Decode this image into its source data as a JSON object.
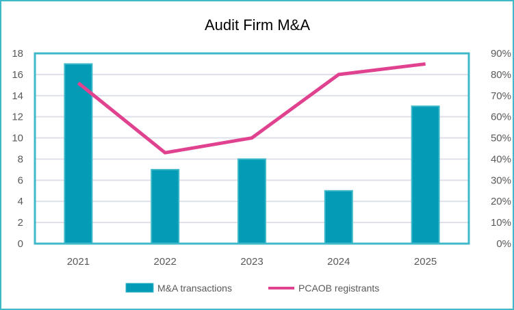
{
  "chart_data": {
    "type": "bar+line",
    "title": "Audit Firm M&A",
    "categories": [
      "2021",
      "2022",
      "2023",
      "2024",
      "2025"
    ],
    "series": [
      {
        "name": "M&A transactions",
        "type": "bar",
        "axis": "left",
        "values": [
          17,
          7,
          8,
          5,
          13
        ],
        "color": "#039bb5"
      },
      {
        "name": "PCAOB registrants",
        "type": "line",
        "axis": "right",
        "values": [
          0.76,
          0.43,
          0.5,
          0.8,
          0.85
        ],
        "color": "#e0428f"
      }
    ],
    "y_left": {
      "min": 0,
      "max": 18,
      "step": 2,
      "ticks": [
        "0",
        "2",
        "4",
        "6",
        "8",
        "10",
        "12",
        "14",
        "16",
        "18"
      ]
    },
    "y_right": {
      "min": 0,
      "max": 0.9,
      "step": 0.1,
      "ticks": [
        "0%",
        "10%",
        "20%",
        "30%",
        "40%",
        "50%",
        "60%",
        "70%",
        "80%",
        "90%"
      ]
    },
    "grid": true,
    "legend": "bottom",
    "axis_color": "#3fb8c9",
    "grid_color": "#dde0ea"
  }
}
